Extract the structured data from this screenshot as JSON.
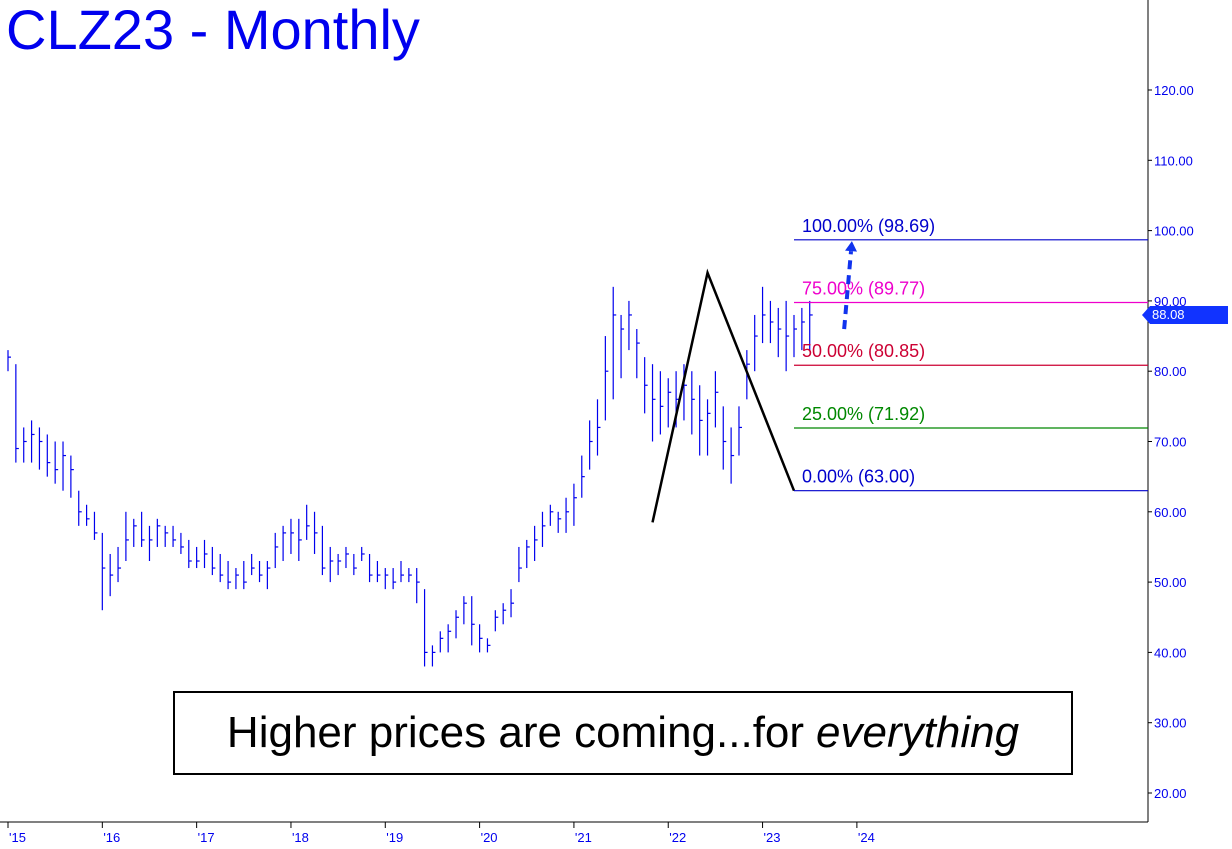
{
  "title": "CLZ23 - Monthly",
  "callout": {
    "text": "Higher prices are coming...for ",
    "emphasis": "everything"
  },
  "last_price": "88.08",
  "chart_data": {
    "type": "ohlc",
    "title": "CLZ23 - Monthly",
    "color": "#0000ee",
    "ylim": [
      15,
      132
    ],
    "y_ticks": [
      "120.00",
      "110.00",
      "100.00",
      "90.00",
      "80.00",
      "70.00",
      "60.00",
      "50.00",
      "40.00",
      "30.00",
      "20.00"
    ],
    "x_ticks": [
      "'15",
      "'16",
      "'17",
      "'18",
      "'19",
      "'20",
      "'21",
      "'22",
      "'23",
      "'24"
    ],
    "x_start": "2015-01",
    "bars": [
      [
        83,
        80,
        82
      ],
      [
        81,
        67,
        69
      ],
      [
        72,
        67,
        70
      ],
      [
        73,
        67,
        71
      ],
      [
        72,
        66,
        70
      ],
      [
        71,
        65,
        67
      ],
      [
        70,
        64,
        66
      ],
      [
        70,
        63,
        68
      ],
      [
        68,
        62,
        66
      ],
      [
        63,
        58,
        60
      ],
      [
        61,
        58,
        59
      ],
      [
        60,
        56,
        57
      ],
      [
        57,
        46,
        52
      ],
      [
        54,
        48,
        51
      ],
      [
        55,
        50,
        52
      ],
      [
        60,
        53,
        56
      ],
      [
        59,
        55,
        58
      ],
      [
        60,
        55,
        56
      ],
      [
        58,
        53,
        56
      ],
      [
        59,
        55,
        58
      ],
      [
        58,
        55,
        57
      ],
      [
        58,
        55,
        56
      ],
      [
        57,
        54,
        55
      ],
      [
        56,
        52,
        53
      ],
      [
        55,
        52,
        53
      ],
      [
        56,
        52,
        54
      ],
      [
        55,
        51,
        52
      ],
      [
        54,
        50,
        51
      ],
      [
        53,
        49,
        50
      ],
      [
        52,
        49,
        51
      ],
      [
        53,
        49,
        50
      ],
      [
        54,
        51,
        52
      ],
      [
        53,
        50,
        51
      ],
      [
        53,
        49,
        52
      ],
      [
        57,
        52,
        55
      ],
      [
        58,
        53,
        57
      ],
      [
        59,
        54,
        57
      ],
      [
        59,
        53,
        56
      ],
      [
        61,
        56,
        58
      ],
      [
        60,
        54,
        57
      ],
      [
        58,
        51,
        52
      ],
      [
        55,
        50,
        53
      ],
      [
        54,
        51,
        53
      ],
      [
        55,
        52,
        54
      ],
      [
        54,
        51,
        52
      ],
      [
        55,
        53,
        54
      ],
      [
        54,
        50,
        51
      ],
      [
        53,
        50,
        51
      ],
      [
        52,
        49,
        51
      ],
      [
        52,
        49,
        50
      ],
      [
        53,
        50,
        51
      ],
      [
        52,
        50,
        51
      ],
      [
        52,
        47,
        50
      ],
      [
        49,
        38,
        40
      ],
      [
        41,
        38,
        40
      ],
      [
        43,
        40,
        42
      ],
      [
        44,
        40,
        43
      ],
      [
        46,
        42,
        45
      ],
      [
        48,
        44,
        47
      ],
      [
        48,
        41,
        44
      ],
      [
        44,
        40,
        42
      ],
      [
        42,
        40,
        41
      ],
      [
        46,
        43,
        45
      ],
      [
        47,
        44,
        46
      ],
      [
        49,
        45,
        47
      ],
      [
        55,
        50,
        52
      ],
      [
        56,
        52,
        55
      ],
      [
        58,
        53,
        56
      ],
      [
        60,
        55,
        58
      ],
      [
        61,
        58,
        60
      ],
      [
        60,
        57,
        59
      ],
      [
        62,
        57,
        60
      ],
      [
        64,
        58,
        62
      ],
      [
        68,
        62,
        65
      ],
      [
        73,
        66,
        70
      ],
      [
        76,
        68,
        72
      ],
      [
        85,
        73,
        80
      ],
      [
        92,
        76,
        88
      ],
      [
        88,
        79,
        86
      ],
      [
        90,
        83,
        88
      ],
      [
        86,
        79,
        84
      ],
      [
        82,
        74,
        78
      ],
      [
        81,
        70,
        76
      ],
      [
        80,
        71,
        75
      ],
      [
        79,
        72,
        77
      ],
      [
        80,
        72,
        76
      ],
      [
        81,
        73,
        78
      ],
      [
        80,
        71,
        76
      ],
      [
        78,
        68,
        73
      ],
      [
        76,
        68,
        74
      ],
      [
        80,
        72,
        77
      ],
      [
        75,
        66,
        70
      ],
      [
        72,
        64,
        68
      ],
      [
        75,
        68,
        72
      ],
      [
        83,
        76,
        81
      ],
      [
        88,
        80,
        85
      ],
      [
        92,
        84,
        88
      ],
      [
        90,
        84,
        87
      ],
      [
        89,
        82,
        86
      ],
      [
        90,
        80,
        85
      ],
      [
        88,
        82,
        86
      ],
      [
        89,
        83,
        87
      ],
      [
        90,
        83,
        88
      ]
    ],
    "pattern_abc": [
      {
        "date": "2021-11",
        "value": 58.5
      },
      {
        "date": "2022-06",
        "value": 94
      },
      {
        "date": "2023-05",
        "value": 63
      }
    ],
    "fib_levels": [
      {
        "label": "100.00% (98.69)",
        "value": 98.69,
        "color": "#0000cc"
      },
      {
        "label": "75.00% (89.77)",
        "value": 89.77,
        "color": "#ee00cc"
      },
      {
        "label": "50.00% (80.85)",
        "value": 80.85,
        "color": "#cc0033"
      },
      {
        "label": "25.00% (71.92)",
        "value": 71.92,
        "color": "#008800"
      },
      {
        "label": "0.00% (63.00)",
        "value": 63.0,
        "color": "#0000cc"
      }
    ],
    "projection": {
      "from": {
        "date": "2023-11",
        "value": 86
      },
      "to": {
        "date": "2023-12",
        "value": 98.5
      },
      "color": "#1133ee"
    }
  }
}
